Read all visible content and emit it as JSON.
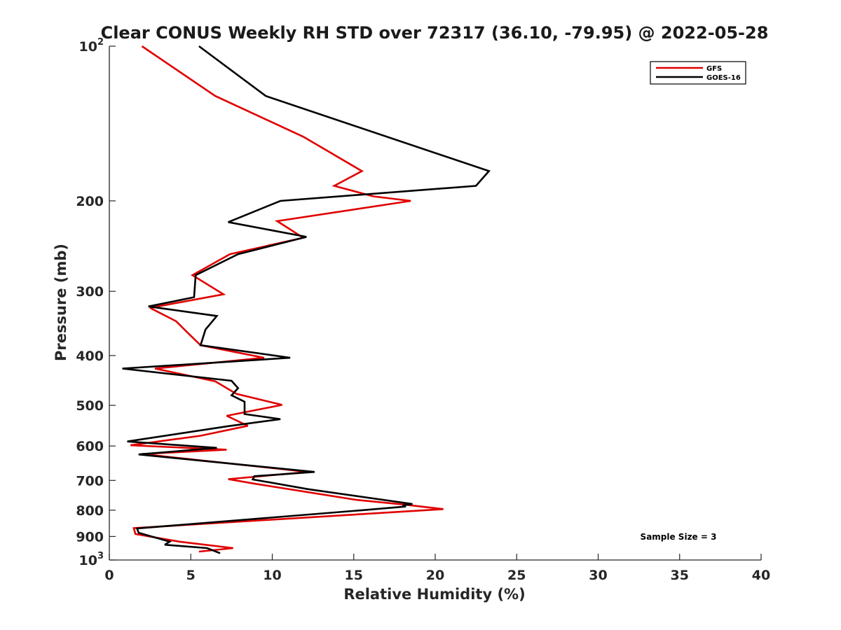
{
  "chart_data": {
    "type": "line",
    "title": "Clear CONUS Weekly RH STD over 72317 (36.10, -79.95) @ 2022-05-28",
    "xlabel": "Relative Humidity (%)",
    "ylabel": "Pressure (mb)",
    "xlim": [
      0,
      40
    ],
    "ylim": [
      100,
      1000
    ],
    "y_scale": "log",
    "y_reversed": true,
    "grid": false,
    "legend_position": "top-right",
    "x_ticks": [
      {
        "value": 0,
        "label": "0"
      },
      {
        "value": 5,
        "label": "5"
      },
      {
        "value": 10,
        "label": "10"
      },
      {
        "value": 15,
        "label": "15"
      },
      {
        "value": 20,
        "label": "20"
      },
      {
        "value": 25,
        "label": "25"
      },
      {
        "value": 30,
        "label": "30"
      },
      {
        "value": 35,
        "label": "35"
      },
      {
        "value": 40,
        "label": "40"
      }
    ],
    "y_ticks": [
      {
        "value": 100,
        "base": "10",
        "exp": "2"
      },
      {
        "value": 200,
        "base": "200",
        "exp": ""
      },
      {
        "value": 300,
        "base": "300",
        "exp": ""
      },
      {
        "value": 400,
        "base": "400",
        "exp": ""
      },
      {
        "value": 500,
        "base": "500",
        "exp": ""
      },
      {
        "value": 600,
        "base": "600",
        "exp": ""
      },
      {
        "value": 700,
        "base": "700",
        "exp": ""
      },
      {
        "value": 800,
        "base": "800",
        "exp": ""
      },
      {
        "value": 900,
        "base": "900",
        "exp": ""
      },
      {
        "value": 1000,
        "base": "10",
        "exp": "3"
      }
    ],
    "series": [
      {
        "name": "GFS",
        "color": "#e00000",
        "points": [
          [
            2.0,
            100
          ],
          [
            6.5,
            125
          ],
          [
            11.9,
            150
          ],
          [
            15.5,
            175
          ],
          [
            13.8,
            187
          ],
          [
            16.2,
            196
          ],
          [
            18.5,
            200
          ],
          [
            10.3,
            219
          ],
          [
            11.9,
            236
          ],
          [
            7.4,
            254
          ],
          [
            5.1,
            279
          ],
          [
            7.0,
            304
          ],
          [
            2.5,
            323
          ],
          [
            4.1,
            343
          ],
          [
            4.8,
            361
          ],
          [
            5.6,
            382
          ],
          [
            9.5,
            404
          ],
          [
            2.8,
            424
          ],
          [
            6.5,
            449
          ],
          [
            7.8,
            475
          ],
          [
            10.6,
            499
          ],
          [
            7.2,
            524
          ],
          [
            8.5,
            548
          ],
          [
            5.6,
            573
          ],
          [
            1.3,
            598
          ],
          [
            7.2,
            610
          ],
          [
            2.0,
            622
          ],
          [
            12.2,
            674
          ],
          [
            7.3,
            696
          ],
          [
            9.0,
            711
          ],
          [
            15.2,
            764
          ],
          [
            18.1,
            780
          ],
          [
            20.5,
            796
          ],
          [
            1.5,
            867
          ],
          [
            1.6,
            890
          ],
          [
            4.3,
            921
          ],
          [
            7.6,
            948
          ],
          [
            5.5,
            963
          ]
        ]
      },
      {
        "name": "GOES-16",
        "color": "#000000",
        "points": [
          [
            5.5,
            100
          ],
          [
            9.6,
            125
          ],
          [
            23.3,
            175
          ],
          [
            22.5,
            187
          ],
          [
            10.5,
            200
          ],
          [
            7.3,
            220
          ],
          [
            12.1,
            235
          ],
          [
            7.9,
            254
          ],
          [
            5.3,
            279
          ],
          [
            5.2,
            308
          ],
          [
            2.4,
            321
          ],
          [
            6.6,
            335
          ],
          [
            5.9,
            356
          ],
          [
            5.6,
            382
          ],
          [
            11.1,
            404
          ],
          [
            0.8,
            424
          ],
          [
            7.5,
            448
          ],
          [
            7.9,
            463
          ],
          [
            7.5,
            478
          ],
          [
            8.3,
            492
          ],
          [
            8.3,
            520
          ],
          [
            10.5,
            532
          ],
          [
            7.3,
            549
          ],
          [
            1.1,
            588
          ],
          [
            6.6,
            605
          ],
          [
            1.8,
            623
          ],
          [
            12.6,
            674
          ],
          [
            8.9,
            687
          ],
          [
            8.8,
            697
          ],
          [
            12.2,
            728
          ],
          [
            18.6,
            778
          ],
          [
            18.0,
            783
          ],
          [
            18.2,
            787
          ],
          [
            15.5,
            800
          ],
          [
            1.7,
            868
          ],
          [
            1.8,
            885
          ],
          [
            3.7,
            921
          ],
          [
            3.4,
            934
          ],
          [
            6.0,
            948
          ],
          [
            6.8,
            970
          ]
        ]
      }
    ],
    "annotation": "Sample Size = 3"
  }
}
